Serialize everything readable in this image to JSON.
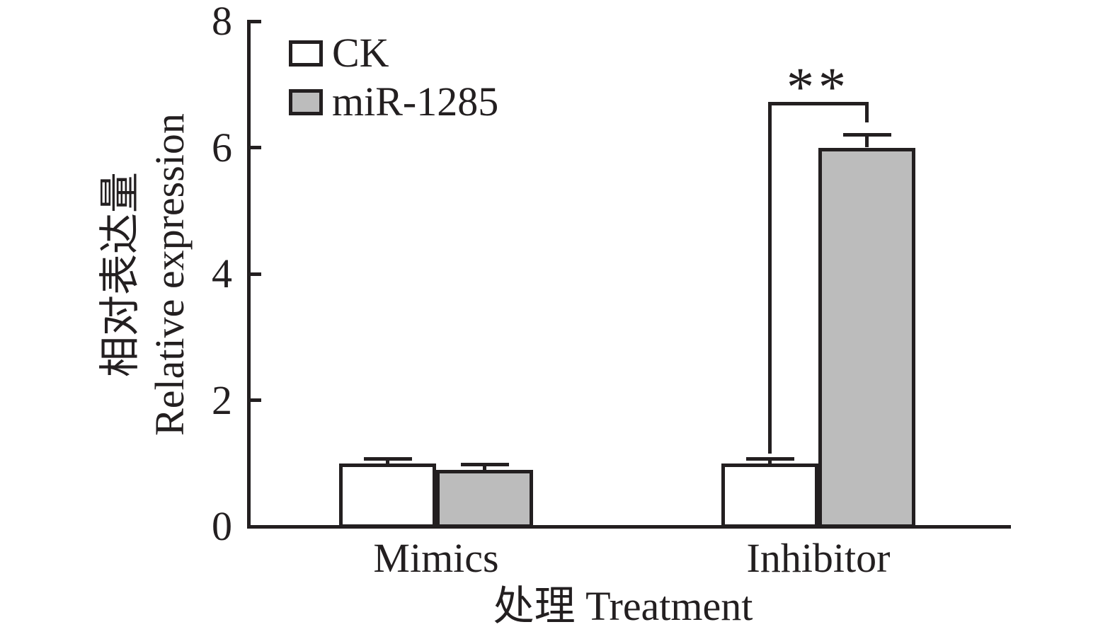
{
  "figure": {
    "background": "#ffffff",
    "ink_color": "#231f20"
  },
  "chart_data": {
    "type": "bar",
    "categories": [
      "Mimics",
      "Inhibitor"
    ],
    "series": [
      {
        "name": "CK",
        "fill": "#ffffff",
        "values": [
          1.0,
          1.0
        ],
        "errors": [
          0.07,
          0.07
        ]
      },
      {
        "name": "miR-1285",
        "fill": "#bcbcbc",
        "values": [
          0.9,
          6.0
        ],
        "errors": [
          0.08,
          0.2
        ]
      }
    ],
    "ylabel_line1": "相对表达量",
    "ylabel_line2": "Relative expression",
    "xlabel": "处理 Treatment",
    "yticks": [
      0,
      2,
      4,
      6,
      8
    ],
    "ylim": [
      0,
      8
    ],
    "grid": false,
    "error_bars": "upper-only",
    "legend_position": "top-left-inside",
    "significance": {
      "label": "**",
      "category": "Inhibitor",
      "between": [
        "CK",
        "miR-1285"
      ],
      "bar_y": 6.7,
      "left_leg_bottom_y": 1.15,
      "right_leg_bottom_y": 6.4
    }
  }
}
